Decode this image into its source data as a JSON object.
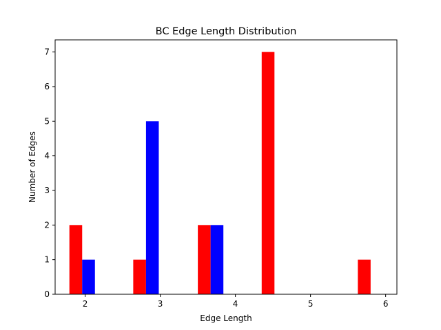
{
  "chart_data": {
    "type": "bar",
    "title": "BC Edge Length Distribution",
    "xlabel": "Edge Length",
    "ylabel": "Number of Edges",
    "xlim": [
      1.6,
      6.15
    ],
    "ylim": [
      0,
      7.35
    ],
    "xticks": [
      2,
      3,
      4,
      5,
      6
    ],
    "yticks": [
      0,
      1,
      2,
      3,
      4,
      5,
      6,
      7
    ],
    "bar_width": 0.17,
    "grid": false,
    "legend": "none",
    "series": [
      {
        "name": "red",
        "color": "#ff0000",
        "bars": [
          {
            "x": 1.79,
            "value": 2
          },
          {
            "x": 2.64,
            "value": 1
          },
          {
            "x": 3.5,
            "value": 2
          },
          {
            "x": 4.35,
            "value": 7
          },
          {
            "x": 5.63,
            "value": 1
          }
        ]
      },
      {
        "name": "blue",
        "color": "#0000ff",
        "bars": [
          {
            "x": 1.96,
            "value": 1
          },
          {
            "x": 2.81,
            "value": 5
          },
          {
            "x": 3.67,
            "value": 2
          }
        ]
      }
    ]
  }
}
